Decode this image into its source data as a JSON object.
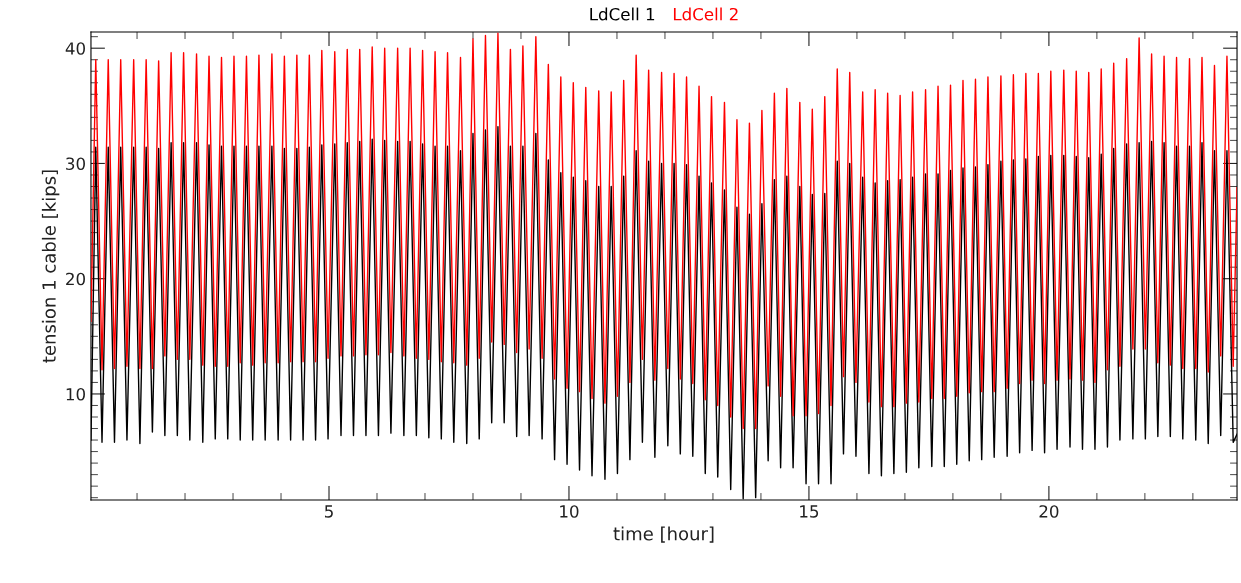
{
  "chart_data": {
    "type": "line",
    "xlabel": "time [hour]",
    "ylabel": "tension 1 cable [kips]",
    "xlim": [
      0.04,
      23.92
    ],
    "ylim": [
      0.8,
      41.4
    ],
    "xticks": [
      5,
      10,
      15,
      20
    ],
    "yticks": [
      10,
      20,
      30,
      40
    ],
    "grid": false,
    "legend": "top",
    "marker": "none",
    "line_style": "solid",
    "x": [
      0.04,
      0.14,
      0.27,
      0.4,
      0.53,
      0.66,
      0.79,
      0.93,
      1.06,
      1.19,
      1.32,
      1.45,
      1.58,
      1.71,
      1.84,
      1.97,
      2.1,
      2.24,
      2.37,
      2.5,
      2.63,
      2.76,
      2.89,
      3.02,
      3.15,
      3.28,
      3.41,
      3.54,
      3.67,
      3.81,
      3.94,
      4.07,
      4.2,
      4.33,
      4.46,
      4.59,
      4.72,
      4.85,
      4.98,
      5.12,
      5.25,
      5.38,
      5.51,
      5.64,
      5.77,
      5.9,
      6.03,
      6.16,
      6.29,
      6.43,
      6.56,
      6.69,
      6.82,
      6.95,
      7.08,
      7.21,
      7.34,
      7.47,
      7.6,
      7.74,
      7.87,
      8.0,
      8.13,
      8.26,
      8.39,
      8.52,
      8.65,
      8.78,
      8.91,
      9.04,
      9.17,
      9.31,
      9.44,
      9.57,
      9.7,
      9.83,
      9.96,
      10.09,
      10.22,
      10.35,
      10.48,
      10.62,
      10.75,
      10.88,
      11.01,
      11.14,
      11.27,
      11.4,
      11.53,
      11.66,
      11.79,
      11.93,
      12.06,
      12.19,
      12.32,
      12.45,
      12.58,
      12.71,
      12.84,
      12.97,
      13.1,
      13.24,
      13.37,
      13.5,
      13.63,
      13.76,
      13.89,
      14.02,
      14.15,
      14.28,
      14.41,
      14.54,
      14.67,
      14.81,
      14.94,
      15.07,
      15.2,
      15.33,
      15.46,
      15.59,
      15.72,
      15.85,
      15.98,
      16.12,
      16.25,
      16.38,
      16.51,
      16.64,
      16.77,
      16.9,
      17.03,
      17.16,
      17.29,
      17.43,
      17.56,
      17.69,
      17.82,
      17.95,
      18.08,
      18.21,
      18.34,
      18.47,
      18.6,
      18.73,
      18.86,
      19.0,
      19.13,
      19.26,
      19.39,
      19.52,
      19.65,
      19.78,
      19.91,
      20.04,
      20.17,
      20.31,
      20.44,
      20.57,
      20.7,
      20.83,
      20.96,
      21.09,
      21.22,
      21.35,
      21.48,
      21.62,
      21.75,
      21.88,
      22.01,
      22.14,
      22.27,
      22.4,
      22.53,
      22.66,
      22.79,
      22.93,
      23.06,
      23.19,
      23.32,
      23.45,
      23.58,
      23.71,
      23.84,
      23.92
    ],
    "series": [
      {
        "name": "LdCell 1",
        "color": "#000000",
        "values": [
          6.0,
          31.4,
          5.8,
          31.4,
          5.8,
          31.4,
          6.0,
          31.4,
          5.7,
          31.4,
          6.7,
          31.3,
          6.4,
          31.8,
          6.4,
          31.8,
          6.0,
          31.8,
          5.8,
          31.6,
          6.1,
          31.5,
          6.1,
          31.5,
          6.0,
          31.5,
          6.0,
          31.5,
          6.0,
          31.5,
          6.0,
          31.3,
          6.0,
          31.3,
          6.0,
          31.4,
          6.0,
          31.6,
          6.1,
          31.7,
          6.4,
          31.8,
          6.4,
          31.9,
          6.4,
          32.1,
          6.4,
          32.0,
          6.6,
          31.9,
          6.4,
          31.9,
          6.4,
          31.7,
          6.2,
          31.5,
          6.1,
          31.5,
          5.8,
          31.1,
          5.7,
          32.6,
          6.1,
          32.9,
          7.5,
          33.2,
          7.5,
          31.5,
          6.3,
          31.5,
          6.4,
          32.6,
          6.1,
          30.3,
          4.3,
          29.2,
          3.9,
          28.8,
          3.4,
          28.5,
          2.9,
          28.0,
          2.6,
          28.0,
          3.1,
          28.9,
          4.3,
          31.1,
          5.8,
          30.2,
          4.5,
          30.0,
          5.5,
          30.0,
          4.8,
          29.9,
          4.6,
          28.9,
          3.1,
          28.3,
          2.8,
          27.7,
          1.7,
          26.2,
          0.9,
          25.6,
          1.0,
          26.5,
          4.2,
          28.6,
          3.6,
          28.9,
          3.6,
          28.0,
          2.2,
          27.3,
          2.2,
          27.4,
          2.2,
          30.2,
          4.8,
          30.0,
          4.6,
          28.8,
          3.1,
          28.3,
          2.9,
          28.5,
          3.1,
          28.6,
          3.2,
          28.8,
          3.6,
          29.1,
          3.7,
          29.1,
          3.7,
          29.4,
          3.9,
          29.6,
          4.2,
          29.7,
          4.3,
          29.9,
          4.5,
          30.2,
          4.6,
          30.3,
          4.9,
          30.4,
          5.1,
          30.6,
          4.9,
          30.7,
          5.2,
          30.7,
          5.4,
          30.6,
          5.2,
          30.5,
          5.2,
          30.8,
          5.4,
          31.3,
          6.0,
          31.7,
          6.1,
          31.8,
          6.1,
          31.9,
          6.3,
          31.8,
          6.3,
          31.5,
          6.1,
          31.5,
          6.0,
          31.8,
          5.7,
          31.1,
          6.4,
          31.1,
          5.8,
          6.5
        ]
      },
      {
        "name": "LdCell 2",
        "color": "#ff0000",
        "values": [
          16.3,
          39.0,
          12.1,
          39.0,
          12.2,
          39.0,
          12.4,
          39.0,
          12.2,
          39.0,
          12.2,
          38.9,
          13.3,
          39.6,
          13.0,
          39.6,
          13.0,
          39.5,
          12.5,
          39.3,
          12.4,
          39.2,
          12.4,
          39.3,
          12.7,
          39.3,
          12.5,
          39.4,
          12.7,
          39.5,
          12.7,
          39.3,
          12.8,
          39.4,
          12.8,
          39.4,
          12.8,
          39.8,
          13.1,
          39.7,
          13.3,
          39.9,
          13.3,
          39.9,
          13.4,
          40.1,
          13.4,
          40.0,
          13.6,
          40.0,
          13.3,
          40.0,
          13.1,
          39.8,
          13.0,
          39.7,
          12.8,
          39.6,
          12.7,
          39.2,
          12.5,
          40.8,
          13.1,
          41.1,
          14.5,
          41.3,
          14.3,
          39.9,
          13.6,
          40.2,
          13.9,
          41.0,
          13.1,
          38.6,
          11.3,
          37.5,
          10.5,
          37.0,
          10.2,
          36.6,
          9.6,
          36.3,
          9.2,
          36.2,
          9.8,
          37.2,
          11.0,
          39.4,
          13.0,
          38.1,
          11.2,
          37.9,
          12.2,
          37.8,
          11.3,
          37.5,
          10.9,
          36.7,
          9.5,
          35.8,
          9.0,
          35.3,
          8.0,
          33.8,
          7.0,
          33.5,
          7.0,
          34.6,
          10.7,
          36.1,
          9.8,
          36.5,
          8.1,
          35.3,
          8.1,
          34.7,
          8.3,
          35.8,
          9.0,
          38.2,
          11.5,
          37.9,
          11.0,
          36.2,
          9.3,
          36.4,
          8.9,
          36.1,
          8.9,
          35.9,
          9.2,
          36.2,
          9.3,
          36.4,
          9.6,
          36.7,
          9.6,
          36.8,
          9.8,
          37.2,
          10.1,
          37.3,
          10.2,
          37.5,
          10.2,
          37.6,
          10.5,
          37.7,
          10.9,
          37.8,
          11.2,
          37.8,
          10.9,
          38.0,
          11.2,
          38.1,
          11.3,
          38.0,
          11.2,
          37.9,
          11.0,
          38.2,
          12.1,
          38.7,
          12.4,
          39.1,
          13.9,
          40.9,
          13.9,
          39.5,
          12.7,
          39.3,
          12.5,
          39.2,
          12.2,
          39.1,
          12.2,
          39.2,
          11.9,
          38.5,
          13.3,
          39.3,
          12.4,
          27.9
        ]
      }
    ]
  }
}
